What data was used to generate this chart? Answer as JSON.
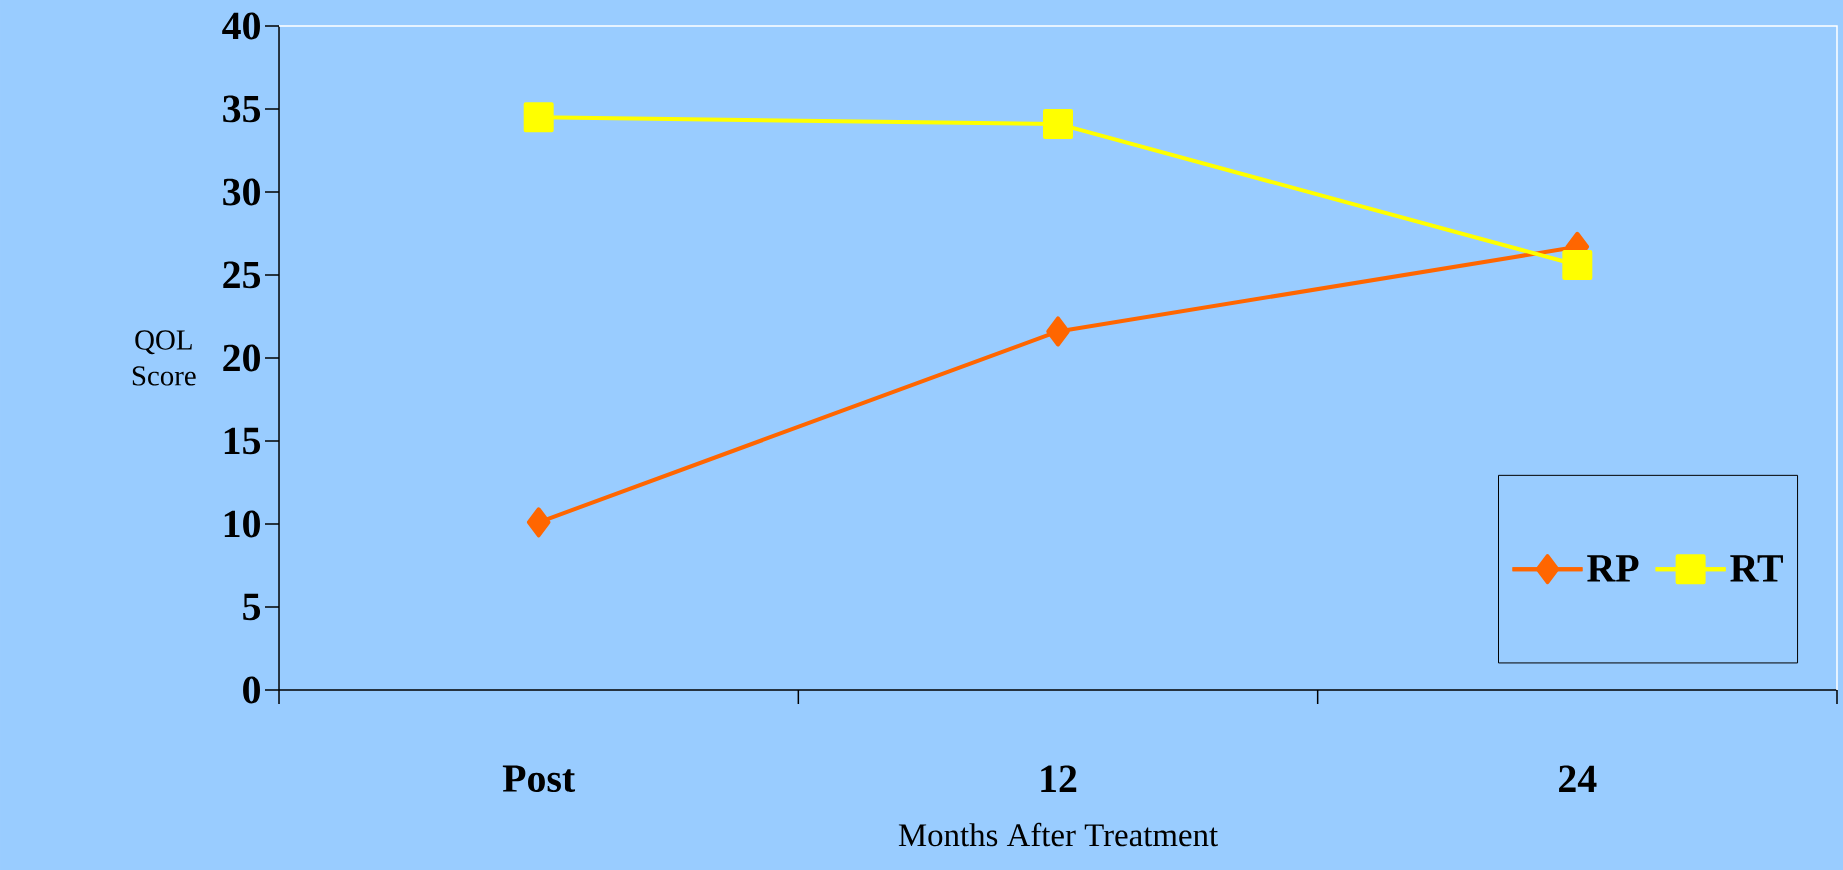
{
  "chart_data": {
    "type": "line",
    "xlabel": "Months After Treatment",
    "ylabel": "QOL Score",
    "categories": [
      "Post",
      "12",
      "24"
    ],
    "series": [
      {
        "name": "RP",
        "color": "#ff6600",
        "marker": "diamond",
        "values": [
          10.1,
          21.6,
          26.7
        ]
      },
      {
        "name": "RT",
        "color": "#ffff00",
        "marker": "square",
        "values": [
          34.5,
          34.1,
          25.6
        ]
      }
    ],
    "ylim": [
      0,
      40
    ],
    "yticks": [
      0,
      5,
      10,
      15,
      20,
      25,
      30,
      35,
      40
    ],
    "grid": false,
    "legend": "bottom right",
    "line_style": "solid"
  }
}
